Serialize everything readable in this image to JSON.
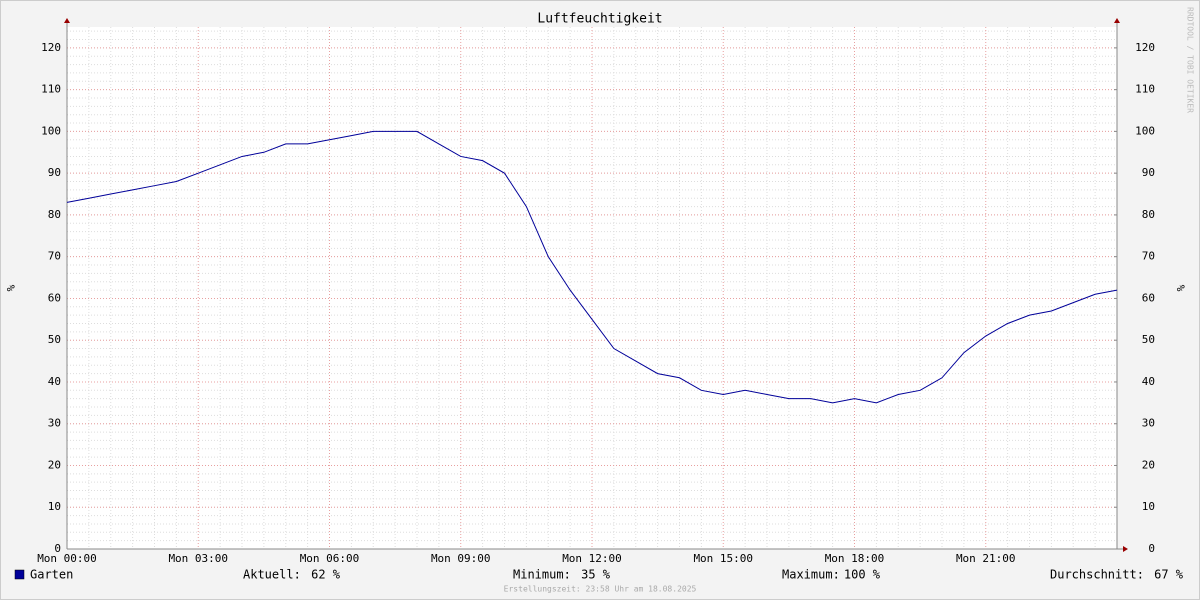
{
  "chart_data": {
    "type": "line",
    "title": "Luftfeuchtigkeit",
    "y_label": "%",
    "y2_label": "%",
    "watermark": "RRDTOOL / TOBI OETIKER",
    "footer": "Erstellungszeit: 23:58 Uhr am 18.08.2025",
    "x": [
      0,
      0.5,
      1,
      1.5,
      2,
      2.5,
      3,
      3.5,
      4,
      4.5,
      5,
      5.5,
      6,
      6.5,
      7,
      7.5,
      8,
      8.5,
      9,
      9.5,
      10,
      10.5,
      11,
      11.5,
      12,
      12.5,
      13,
      13.5,
      14,
      14.5,
      15,
      15.5,
      16,
      16.5,
      17,
      17.5,
      18,
      18.5,
      19,
      19.5,
      20,
      20.5,
      21,
      21.5,
      22,
      22.5,
      23,
      23.5,
      24
    ],
    "series": [
      {
        "name": "Garten",
        "color": "#000099",
        "values": [
          83,
          84,
          85,
          86,
          87,
          88,
          90,
          92,
          94,
          95,
          97,
          97,
          98,
          99,
          100,
          100,
          100,
          97,
          94,
          93,
          90,
          82,
          70,
          62,
          55,
          48,
          45,
          42,
          41,
          38,
          37,
          38,
          37,
          36,
          36,
          35,
          36,
          35,
          37,
          38,
          41,
          47,
          51,
          54,
          56,
          57,
          59,
          61,
          62
        ]
      }
    ],
    "xlim": [
      0,
      24
    ],
    "xticks": [
      {
        "value": 0,
        "label": "Mon 00:00"
      },
      {
        "value": 3,
        "label": "Mon 03:00"
      },
      {
        "value": 6,
        "label": "Mon 06:00"
      },
      {
        "value": 9,
        "label": "Mon 09:00"
      },
      {
        "value": 12,
        "label": "Mon 12:00"
      },
      {
        "value": 15,
        "label": "Mon 15:00"
      },
      {
        "value": 18,
        "label": "Mon 18:00"
      },
      {
        "value": 21,
        "label": "Mon 21:00"
      }
    ],
    "ylim": [
      0,
      125
    ],
    "yticks": [
      0,
      10,
      20,
      30,
      40,
      50,
      60,
      70,
      80,
      90,
      100,
      110,
      120
    ],
    "y2lim": [
      0,
      125
    ],
    "y2ticks": [
      0,
      10,
      20,
      30,
      40,
      50,
      60,
      70,
      80,
      90,
      100,
      110,
      120
    ],
    "grid": true,
    "minor_grid": true,
    "stats": [
      {
        "label": "Aktuell:",
        "value": 62,
        "value_label": "62 %"
      },
      {
        "label": "Minimum:",
        "value": 35,
        "value_label": "35 %"
      },
      {
        "label": "Maximum:",
        "value": 100,
        "value_label": "100 %"
      },
      {
        "label": "Durchschnitt:",
        "value": 67,
        "value_label": "67 %"
      }
    ]
  }
}
